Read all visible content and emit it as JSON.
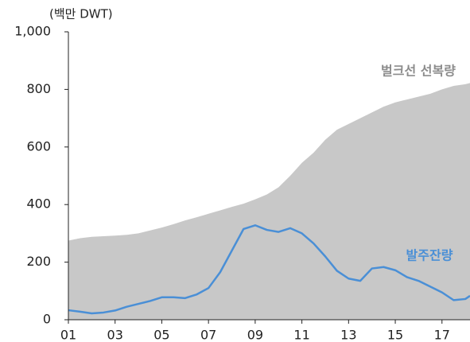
{
  "chart_data": {
    "type": "line",
    "y_unit_label": "(백만 DWT)",
    "x": [
      1,
      1.5,
      2,
      2.5,
      3,
      3.5,
      4,
      4.5,
      5,
      5.5,
      6,
      6.5,
      7,
      7.5,
      8,
      8.5,
      9,
      9.5,
      10,
      10.5,
      11,
      11.5,
      12,
      12.5,
      13,
      13.5,
      14,
      14.5,
      15,
      15.5,
      16,
      16.5,
      17,
      17.5,
      18,
      18.2
    ],
    "series": [
      {
        "name": "벌크선 선복량",
        "type": "area",
        "color": "#c8c8c8",
        "label_color": "#8c8c8c",
        "values": [
          275,
          283,
          288,
          290,
          292,
          295,
          300,
          310,
          320,
          332,
          345,
          356,
          368,
          380,
          392,
          403,
          418,
          435,
          460,
          500,
          545,
          580,
          625,
          660,
          680,
          700,
          720,
          740,
          755,
          765,
          775,
          785,
          800,
          812,
          818,
          822
        ]
      },
      {
        "name": "발주잔량",
        "type": "line",
        "color": "#4a8fd6",
        "label_color": "#4a8fd6",
        "values": [
          33,
          28,
          22,
          25,
          32,
          45,
          55,
          65,
          78,
          78,
          75,
          88,
          110,
          165,
          240,
          315,
          328,
          312,
          305,
          318,
          300,
          265,
          220,
          170,
          143,
          135,
          178,
          183,
          172,
          148,
          135,
          115,
          95,
          68,
          72,
          83
        ]
      }
    ],
    "xlim": [
      1,
      18.2
    ],
    "xticks": [
      {
        "value": 1,
        "label": "01"
      },
      {
        "value": 3,
        "label": "03"
      },
      {
        "value": 5,
        "label": "05"
      },
      {
        "value": 7,
        "label": "07"
      },
      {
        "value": 9,
        "label": "09"
      },
      {
        "value": 11,
        "label": "11"
      },
      {
        "value": 13,
        "label": "13"
      },
      {
        "value": 15,
        "label": "15"
      },
      {
        "value": 17,
        "label": "17"
      }
    ],
    "ylim": [
      0,
      1000
    ],
    "yticks": [
      0,
      200,
      400,
      600,
      800,
      {
        "value": 1000,
        "label": "1,000"
      }
    ],
    "grid": false
  }
}
